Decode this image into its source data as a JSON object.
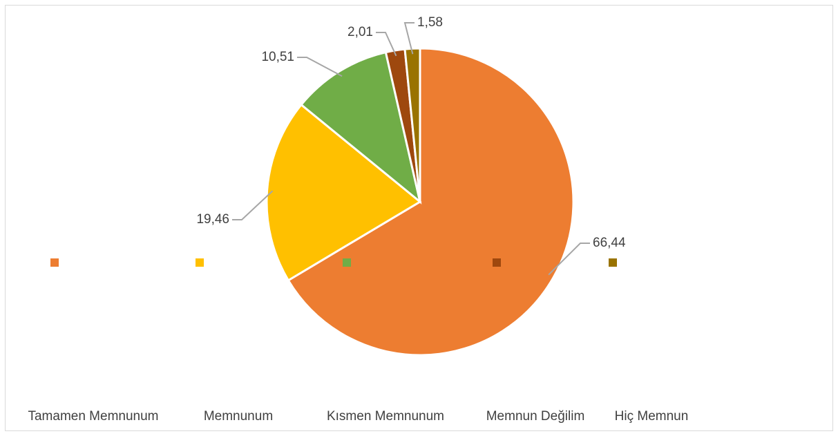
{
  "chart_data": {
    "type": "pie",
    "categories": [
      "Tamamen Memnunum",
      "Memnunum",
      "Kısmen Memnunum",
      "Memnun Değilim",
      "Hiç Memnun"
    ],
    "values": [
      66.44,
      19.46,
      10.51,
      2.01,
      1.58
    ],
    "value_labels": [
      "66,44",
      "19,46",
      "10,51",
      "2,01",
      "1,58"
    ],
    "colors": [
      "#ED7D31",
      "#FFC000",
      "#70AD47",
      "#9E480E",
      "#997300"
    ],
    "legend": "bottom"
  }
}
